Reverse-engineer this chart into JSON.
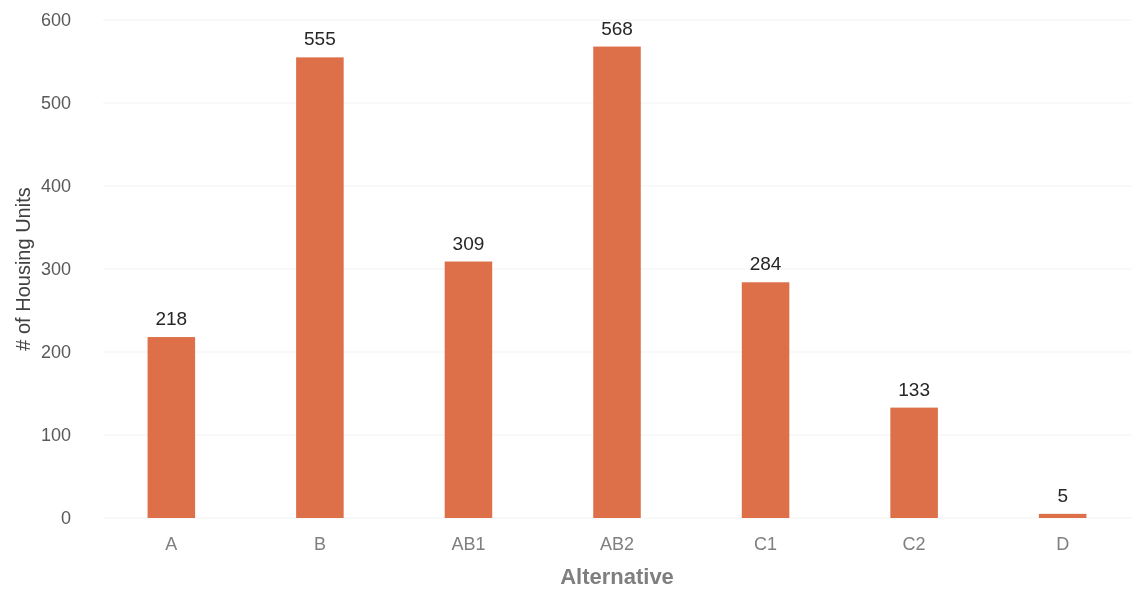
{
  "chart_data": {
    "type": "bar",
    "xlabel": "Alternative",
    "ylabel": "# of Housing Units",
    "categories": [
      "A",
      "B",
      "AB1",
      "AB2",
      "C1",
      "C2",
      "D"
    ],
    "values": [
      218,
      555,
      309,
      568,
      284,
      133,
      5
    ],
    "color": "#dd7048",
    "ylim": [
      0,
      600
    ],
    "yticks": [
      0,
      100,
      200,
      300,
      400,
      500,
      600
    ],
    "grid": "y",
    "data_labels": true
  }
}
